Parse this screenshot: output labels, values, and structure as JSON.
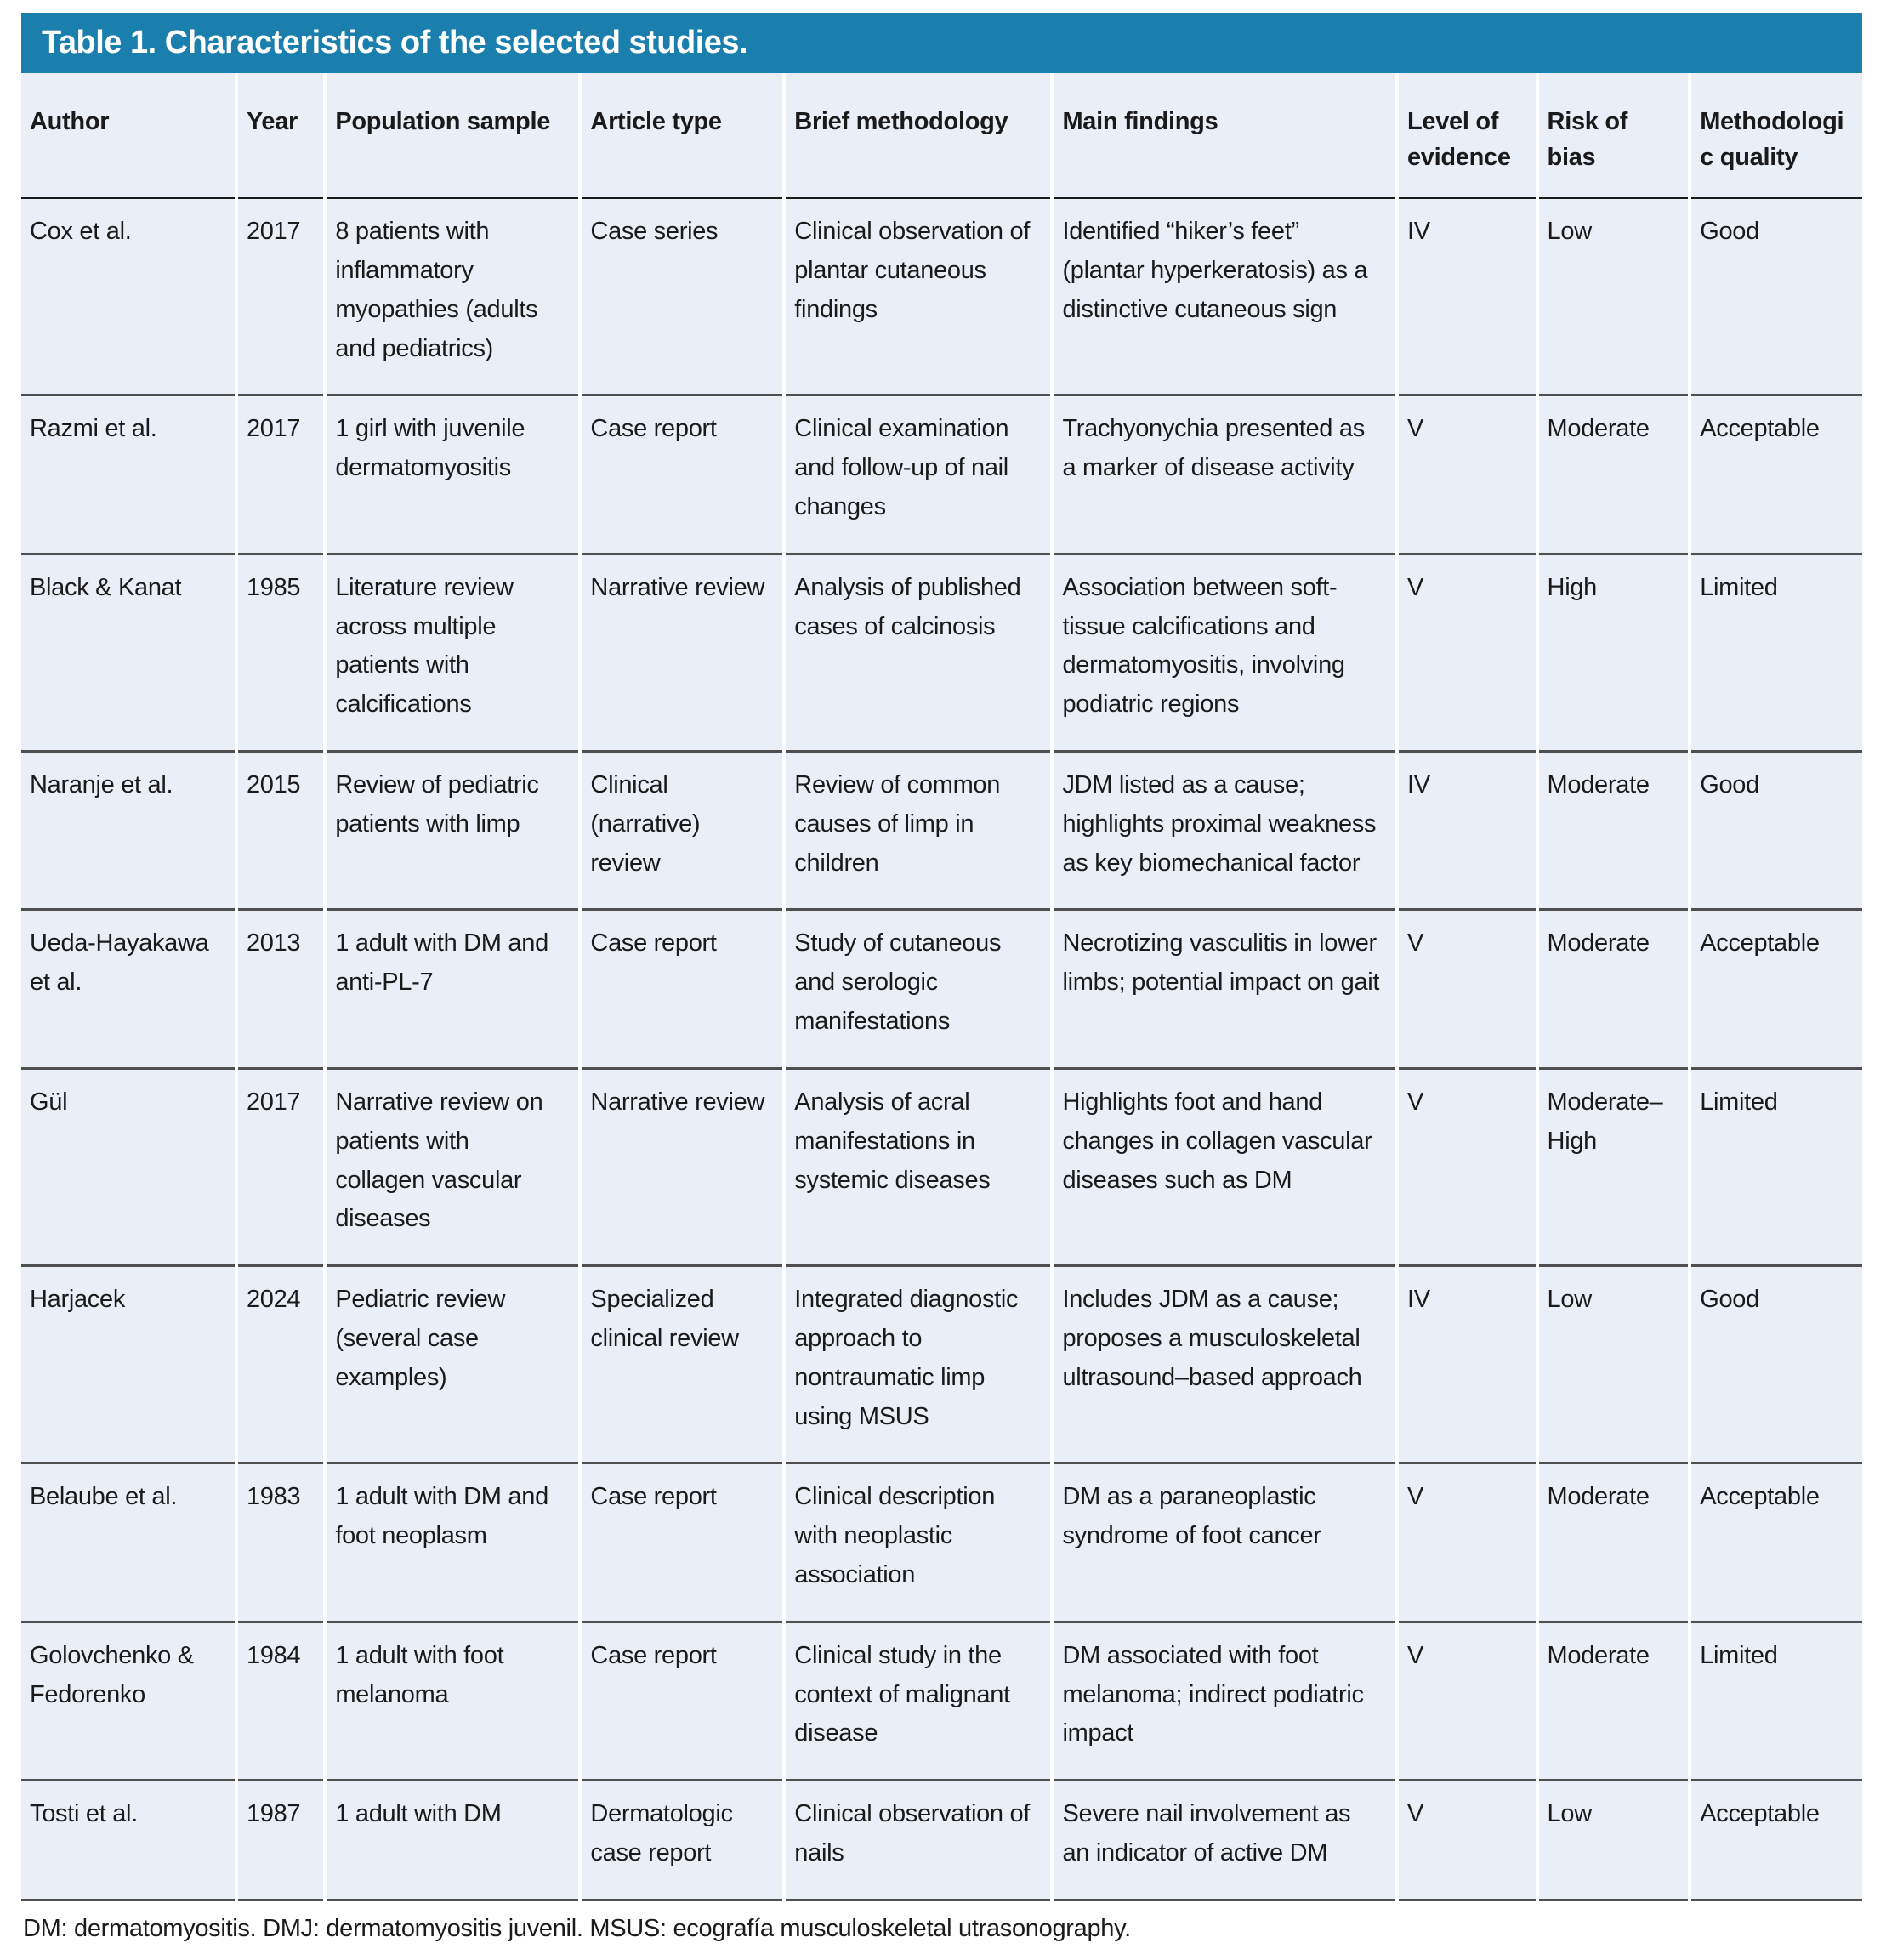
{
  "table": {
    "title": "Table 1. Characteristics of the selected studies.",
    "columns": [
      "Author",
      "Year",
      "Population sample",
      "Article type",
      "Brief methodology",
      "Main findings",
      "Level of evidence",
      "Risk of bias",
      "Methodologic quality"
    ],
    "rows": [
      [
        "Cox et al.",
        "2017",
        "8 patients with inflammatory myopathies (adults and pediatrics)",
        "Case series",
        "Clinical observation of plantar cutaneous findings",
        "Identified “hiker’s feet” (plantar hyperkeratosis) as a distinctive cutaneous sign",
        "IV",
        "Low",
        "Good"
      ],
      [
        "Razmi et al.",
        "2017",
        "1 girl with juvenile dermatomyositis",
        "Case report",
        "Clinical examination and follow-up of nail changes",
        "Trachyonychia presented as a marker of disease activity",
        "V",
        "Moderate",
        "Acceptable"
      ],
      [
        "Black & Kanat",
        "1985",
        "Literature review across multiple patients with calcifications",
        "Narrative review",
        "Analysis of published cases of calcinosis",
        "Association between soft-tissue calcifications and dermatomyositis, involving podiatric regions",
        "V",
        "High",
        "Limited"
      ],
      [
        "Naranje et al.",
        "2015",
        "Review of pediatric patients with limp",
        "Clinical (narrative) review",
        "Review of common causes of limp in children",
        "JDM listed as a cause; highlights proximal weakness as key biomechanical factor",
        "IV",
        "Moderate",
        "Good"
      ],
      [
        "Ueda-Hayakawa et al.",
        "2013",
        "1 adult with DM and anti-PL-7",
        "Case report",
        "Study of cutaneous and serologic manifestations",
        "Necrotizing vasculitis in lower limbs; potential impact on gait",
        "V",
        "Moderate",
        "Acceptable"
      ],
      [
        "Gül",
        "2017",
        "Narrative review on patients with collagen vascular diseases",
        "Narrative review",
        "Analysis of acral manifestations in systemic diseases",
        "Highlights foot and hand changes in collagen vascular diseases such as DM",
        "V",
        "Moderate–High",
        "Limited"
      ],
      [
        "Harjacek",
        "2024",
        "Pediatric review (several case examples)",
        "Specialized clinical review",
        "Integrated diagnostic approach to nontraumatic limp using MSUS",
        "Includes JDM as a cause; proposes a musculoskeletal ultrasound–based approach",
        "IV",
        "Low",
        "Good"
      ],
      [
        "Belaube et al.",
        "1983",
        "1 adult with DM and foot neoplasm",
        "Case report",
        "Clinical description with neoplastic association",
        "DM as a paraneoplastic syndrome of foot cancer",
        "V",
        "Moderate",
        "Acceptable"
      ],
      [
        "Golovchenko & Fedorenko",
        "1984",
        "1 adult with foot melanoma",
        "Case report",
        "Clinical study in the context of malignant disease",
        "DM associated with foot melanoma; indirect podiatric impact",
        "V",
        "Moderate",
        "Limited"
      ],
      [
        "Tosti et al.",
        "1987",
        "1 adult with DM",
        "Dermatologic case report",
        "Clinical observation of nails",
        "Severe nail involvement as an indicator of active DM",
        "V",
        "Low",
        "Acceptable"
      ]
    ],
    "footnote": "DM: dermatomyositis. DMJ: dermatomyositis juvenil. MSUS: ecografía musculoskeletal utrasonography.",
    "colors": {
      "title_bar_bg": "#1b7fae",
      "title_text": "#ffffff",
      "row_bg": "#eaeef7",
      "text": "#1a1a1a",
      "header_rule": "#1a1a1a",
      "row_rule": "#4f4f4f"
    }
  }
}
